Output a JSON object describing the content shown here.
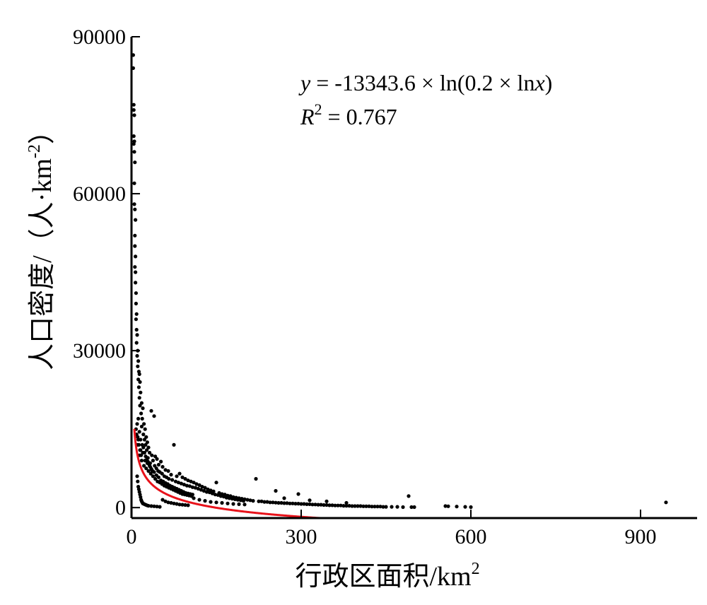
{
  "chart_data": {
    "type": "scatter",
    "xlabel_main": "行政区面积/km",
    "xlabel_sup": "2",
    "ylabel_main": "人口密度/（人·km",
    "ylabel_sup": "-2",
    "ylabel_close": "）",
    "xlim": [
      0,
      1000
    ],
    "ylim": [
      -2000,
      90000
    ],
    "xticks": [
      0,
      300,
      600,
      900
    ],
    "xtick_labels": [
      "0",
      "300",
      "600",
      "900"
    ],
    "yticks": [
      0,
      30000,
      60000,
      90000
    ],
    "ytick_labels": [
      "0",
      "30000",
      "60000",
      "90000"
    ],
    "grid": false,
    "annotation": {
      "eq_y": "y",
      "eq_mid": " = -13343.6 × ln(0.2 × ln",
      "eq_x": "x",
      "eq_end": ")",
      "r_R": "R",
      "r_sup": "2",
      "r_rest": " = 0.767"
    },
    "fit": {
      "a": -13343.6,
      "b": 0.2,
      "x_start": 5.05,
      "x_end": 360
    },
    "colors": {
      "points": "#000000",
      "fit": "#e8121a",
      "axis": "#000000"
    },
    "points": [
      [
        3,
        86500
      ],
      [
        3,
        84000
      ],
      [
        4,
        77000
      ],
      [
        4,
        76000
      ],
      [
        5,
        75000
      ],
      [
        4,
        71000
      ],
      [
        5,
        70000
      ],
      [
        4,
        69500
      ],
      [
        5,
        68000
      ],
      [
        6,
        66000
      ],
      [
        5,
        62000
      ],
      [
        5,
        58000
      ],
      [
        6,
        57000
      ],
      [
        7,
        55000
      ],
      [
        6,
        52000
      ],
      [
        6,
        50000
      ],
      [
        7,
        48000
      ],
      [
        6,
        46000
      ],
      [
        7,
        45000
      ],
      [
        7,
        43000
      ],
      [
        8,
        41000
      ],
      [
        8,
        39000
      ],
      [
        9,
        37000
      ],
      [
        8,
        36000
      ],
      [
        9,
        34000
      ],
      [
        10,
        33000
      ],
      [
        9,
        31500
      ],
      [
        11,
        30000
      ],
      [
        10,
        29000
      ],
      [
        12,
        28000
      ],
      [
        11,
        27000
      ],
      [
        13,
        26000
      ],
      [
        14,
        25500
      ],
      [
        12,
        24500
      ],
      [
        15,
        24000
      ],
      [
        13,
        23000
      ],
      [
        16,
        22000
      ],
      [
        14,
        21000
      ],
      [
        18,
        20000
      ],
      [
        15,
        19500
      ],
      [
        20,
        19000
      ],
      [
        17,
        18000
      ],
      [
        19,
        17000
      ],
      [
        22,
        16000
      ],
      [
        18,
        15500
      ],
      [
        24,
        15000
      ],
      [
        21,
        14000
      ],
      [
        26,
        13500
      ],
      [
        23,
        13000
      ],
      [
        28,
        12500
      ],
      [
        25,
        12000
      ],
      [
        30,
        11500
      ],
      [
        27,
        11000
      ],
      [
        35,
        18500
      ],
      [
        40,
        17500
      ],
      [
        32,
        10500
      ],
      [
        36,
        10000
      ],
      [
        29,
        9500
      ],
      [
        42,
        9800
      ],
      [
        38,
        9000
      ],
      [
        45,
        9300
      ],
      [
        33,
        8500
      ],
      [
        48,
        8200
      ],
      [
        41,
        8000
      ],
      [
        52,
        8800
      ],
      [
        44,
        7500
      ],
      [
        55,
        7800
      ],
      [
        47,
        7000
      ],
      [
        60,
        7200
      ],
      [
        50,
        6800
      ],
      [
        65,
        7000
      ],
      [
        54,
        6500
      ],
      [
        70,
        6300
      ],
      [
        58,
        6000
      ],
      [
        75,
        12000
      ],
      [
        62,
        5800
      ],
      [
        80,
        6000
      ],
      [
        66,
        5500
      ],
      [
        85,
        6500
      ],
      [
        72,
        5300
      ],
      [
        90,
        5800
      ],
      [
        78,
        5000
      ],
      [
        95,
        5500
      ],
      [
        83,
        4800
      ],
      [
        100,
        5200
      ],
      [
        88,
        4600
      ],
      [
        105,
        5000
      ],
      [
        93,
        4400
      ],
      [
        110,
        4800
      ],
      [
        98,
        4200
      ],
      [
        115,
        4500
      ],
      [
        103,
        4100
      ],
      [
        120,
        4300
      ],
      [
        108,
        3900
      ],
      [
        125,
        4000
      ],
      [
        113,
        3800
      ],
      [
        130,
        3800
      ],
      [
        118,
        3600
      ],
      [
        135,
        3500
      ],
      [
        123,
        3400
      ],
      [
        140,
        3300
      ],
      [
        128,
        3200
      ],
      [
        145,
        3100
      ],
      [
        133,
        3000
      ],
      [
        150,
        4800
      ],
      [
        138,
        2900
      ],
      [
        155,
        2800
      ],
      [
        143,
        2700
      ],
      [
        160,
        2600
      ],
      [
        148,
        2500
      ],
      [
        165,
        2500
      ],
      [
        153,
        2400
      ],
      [
        170,
        2300
      ],
      [
        158,
        2200
      ],
      [
        175,
        2200
      ],
      [
        163,
        2100
      ],
      [
        180,
        2000
      ],
      [
        168,
        1900
      ],
      [
        185,
        1900
      ],
      [
        173,
        1800
      ],
      [
        190,
        1800
      ],
      [
        178,
        1700
      ],
      [
        195,
        1700
      ],
      [
        183,
        1600
      ],
      [
        200,
        1600
      ],
      [
        188,
        1500
      ],
      [
        205,
        1500
      ],
      [
        193,
        1400
      ],
      [
        210,
        1400
      ],
      [
        198,
        1300
      ],
      [
        220,
        5500
      ],
      [
        215,
        1300
      ],
      [
        225,
        1200
      ],
      [
        230,
        1200
      ],
      [
        235,
        1100
      ],
      [
        240,
        1100
      ],
      [
        245,
        1000
      ],
      [
        250,
        1000
      ],
      [
        255,
        950
      ],
      [
        260,
        900
      ],
      [
        265,
        900
      ],
      [
        270,
        850
      ],
      [
        275,
        850
      ],
      [
        280,
        800
      ],
      [
        285,
        800
      ],
      [
        290,
        750
      ],
      [
        295,
        750
      ],
      [
        300,
        700
      ],
      [
        305,
        700
      ],
      [
        310,
        650
      ],
      [
        315,
        650
      ],
      [
        320,
        600
      ],
      [
        325,
        600
      ],
      [
        330,
        550
      ],
      [
        335,
        550
      ],
      [
        340,
        500
      ],
      [
        345,
        500
      ],
      [
        350,
        450
      ],
      [
        355,
        450
      ],
      [
        360,
        400
      ],
      [
        365,
        400
      ],
      [
        370,
        400
      ],
      [
        375,
        350
      ],
      [
        380,
        350
      ],
      [
        385,
        350
      ],
      [
        390,
        300
      ],
      [
        395,
        300
      ],
      [
        400,
        300
      ],
      [
        405,
        300
      ],
      [
        410,
        250
      ],
      [
        415,
        250
      ],
      [
        420,
        250
      ],
      [
        425,
        200
      ],
      [
        430,
        200
      ],
      [
        435,
        200
      ],
      [
        440,
        200
      ],
      [
        445,
        150
      ],
      [
        450,
        150
      ],
      [
        460,
        150
      ],
      [
        470,
        150
      ],
      [
        480,
        100
      ],
      [
        490,
        2200
      ],
      [
        495,
        100
      ],
      [
        500,
        100
      ],
      [
        255,
        3200
      ],
      [
        270,
        1800
      ],
      [
        295,
        2600
      ],
      [
        315,
        1400
      ],
      [
        345,
        1200
      ],
      [
        380,
        900
      ],
      [
        10,
        12000
      ],
      [
        12,
        13000
      ],
      [
        14,
        10000
      ],
      [
        16,
        11000
      ],
      [
        18,
        9000
      ],
      [
        20,
        10500
      ],
      [
        22,
        8000
      ],
      [
        24,
        9000
      ],
      [
        26,
        7500
      ],
      [
        28,
        8500
      ],
      [
        30,
        7000
      ],
      [
        32,
        8000
      ],
      [
        34,
        6500
      ],
      [
        36,
        7200
      ],
      [
        38,
        6000
      ],
      [
        40,
        6800
      ],
      [
        42,
        5500
      ],
      [
        44,
        6200
      ],
      [
        46,
        5000
      ],
      [
        48,
        5800
      ],
      [
        50,
        4800
      ],
      [
        52,
        5200
      ],
      [
        54,
        4500
      ],
      [
        56,
        5000
      ],
      [
        58,
        4200
      ],
      [
        60,
        4700
      ],
      [
        62,
        4000
      ],
      [
        64,
        4500
      ],
      [
        66,
        3800
      ],
      [
        68,
        4200
      ],
      [
        70,
        3600
      ],
      [
        72,
        4000
      ],
      [
        74,
        3400
      ],
      [
        76,
        3800
      ],
      [
        78,
        3200
      ],
      [
        80,
        3600
      ],
      [
        82,
        3000
      ],
      [
        84,
        3400
      ],
      [
        86,
        2800
      ],
      [
        88,
        3200
      ],
      [
        90,
        2600
      ],
      [
        92,
        3000
      ],
      [
        94,
        2500
      ],
      [
        96,
        2800
      ],
      [
        98,
        2400
      ],
      [
        100,
        2700
      ],
      [
        102,
        2300
      ],
      [
        104,
        2600
      ],
      [
        106,
        2200
      ],
      [
        108,
        2500
      ],
      [
        10,
        6000
      ],
      [
        11,
        5000
      ],
      [
        12,
        4000
      ],
      [
        13,
        3500
      ],
      [
        14,
        3000
      ],
      [
        15,
        2500
      ],
      [
        16,
        2000
      ],
      [
        17,
        1500
      ],
      [
        18,
        1200
      ],
      [
        19,
        1000
      ],
      [
        20,
        800
      ],
      [
        22,
        700
      ],
      [
        24,
        600
      ],
      [
        26,
        500
      ],
      [
        28,
        400
      ],
      [
        30,
        350
      ],
      [
        35,
        300
      ],
      [
        40,
        250
      ],
      [
        45,
        200
      ],
      [
        50,
        150
      ],
      [
        55,
        1500
      ],
      [
        60,
        1200
      ],
      [
        65,
        1000
      ],
      [
        70,
        900
      ],
      [
        75,
        800
      ],
      [
        80,
        700
      ],
      [
        85,
        600
      ],
      [
        90,
        550
      ],
      [
        95,
        500
      ],
      [
        100,
        450
      ],
      [
        110,
        1800
      ],
      [
        120,
        1500
      ],
      [
        130,
        1300
      ],
      [
        140,
        1100
      ],
      [
        150,
        1000
      ],
      [
        160,
        900
      ],
      [
        170,
        800
      ],
      [
        180,
        700
      ],
      [
        190,
        650
      ],
      [
        200,
        600
      ],
      [
        8,
        15000
      ],
      [
        9,
        14000
      ],
      [
        10,
        16000
      ],
      [
        11,
        13500
      ],
      [
        12,
        17000
      ],
      [
        13,
        12000
      ],
      [
        14,
        14500
      ],
      [
        15,
        11000
      ],
      [
        16,
        13000
      ],
      [
        17,
        10000
      ],
      [
        19,
        12000
      ],
      [
        21,
        11500
      ],
      [
        23,
        10500
      ],
      [
        25,
        9800
      ],
      [
        27,
        9200
      ],
      [
        29,
        8800
      ],
      [
        31,
        8300
      ],
      [
        33,
        7800
      ],
      [
        35,
        7400
      ],
      [
        37,
        7000
      ],
      [
        555,
        300
      ],
      [
        560,
        250
      ],
      [
        575,
        200
      ],
      [
        590,
        150
      ],
      [
        600,
        100
      ],
      [
        945,
        1000
      ]
    ]
  }
}
